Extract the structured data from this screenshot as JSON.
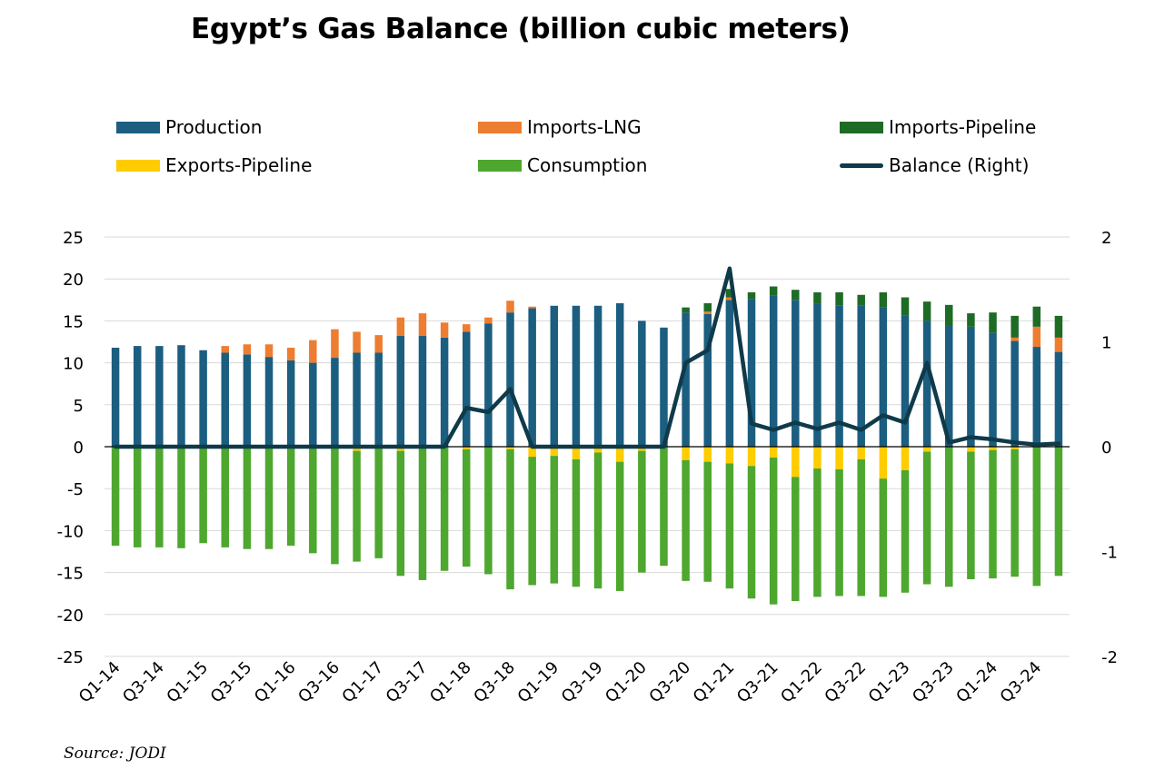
{
  "title": "Egypt’s Gas Balance (billion cubic meters)",
  "source": "Source: JODI",
  "colors": {
    "production": "#1b5e80",
    "imports_lng": "#ed7d31",
    "imports_pipeline": "#1e6b25",
    "exports_pipeline": "#ffcc00",
    "consumption": "#4ea72e",
    "balance": "#0f3a4a",
    "grid": "#d9d9d9"
  },
  "legend": [
    {
      "key": "production",
      "label": "Production",
      "kind": "bar"
    },
    {
      "key": "imports_lng",
      "label": "Imports-LNG",
      "kind": "bar"
    },
    {
      "key": "imports_pipeline",
      "label": "Imports-Pipeline",
      "kind": "bar"
    },
    {
      "key": "exports_pipeline",
      "label": "Exports-Pipeline",
      "kind": "bar"
    },
    {
      "key": "consumption",
      "label": "Consumption",
      "kind": "bar"
    },
    {
      "key": "balance",
      "label": "Balance (Right)",
      "kind": "line"
    }
  ],
  "chart_data": {
    "type": "bar",
    "stacked": true,
    "legend_position": "top",
    "grid": true,
    "ylim": [
      -25,
      25
    ],
    "y_ticks": [
      25,
      20,
      15,
      10,
      5,
      0,
      -5,
      -10,
      -15,
      -20,
      -25
    ],
    "y2lim": [
      -2,
      2
    ],
    "y2_ticks": [
      2,
      1,
      0,
      -1,
      -2
    ],
    "categories": [
      "Q1-14",
      "Q2-14",
      "Q3-14",
      "Q4-14",
      "Q1-15",
      "Q2-15",
      "Q3-15",
      "Q4-15",
      "Q1-16",
      "Q2-16",
      "Q3-16",
      "Q4-16",
      "Q1-17",
      "Q2-17",
      "Q3-17",
      "Q4-17",
      "Q1-18",
      "Q2-18",
      "Q3-18",
      "Q4-18",
      "Q1-19",
      "Q2-19",
      "Q3-19",
      "Q4-19",
      "Q1-20",
      "Q2-20",
      "Q3-20",
      "Q4-20",
      "Q1-21",
      "Q2-21",
      "Q3-21",
      "Q4-21",
      "Q1-22",
      "Q2-22",
      "Q3-22",
      "Q4-22",
      "Q1-23",
      "Q2-23",
      "Q3-23",
      "Q4-23",
      "Q1-24",
      "Q2-24",
      "Q3-24",
      "Q4-24"
    ],
    "x_tick_labels": [
      "Q1-14",
      "Q3-14",
      "Q1-15",
      "Q3-15",
      "Q1-16",
      "Q3-16",
      "Q1-17",
      "Q3-17",
      "Q1-18",
      "Q3-18",
      "Q1-19",
      "Q3-19",
      "Q1-20",
      "Q3-20",
      "Q1-21",
      "Q3-21",
      "Q1-22",
      "Q3-22",
      "Q1-23",
      "Q3-23",
      "Q1-24",
      "Q3-24"
    ],
    "series": [
      {
        "name": "Production",
        "key": "production",
        "axis": "left",
        "values": [
          11.8,
          12.0,
          12.0,
          12.1,
          11.5,
          11.2,
          11.0,
          10.7,
          10.3,
          10.0,
          10.6,
          11.2,
          11.2,
          13.2,
          13.2,
          13.0,
          13.7,
          14.7,
          16.0,
          16.5,
          16.8,
          16.8,
          16.8,
          17.1,
          15.0,
          14.2,
          16.0,
          15.8,
          17.5,
          17.6,
          18.0,
          17.5,
          17.0,
          16.8,
          16.8,
          16.6,
          15.6,
          15.0,
          14.5,
          14.3,
          13.6,
          12.6,
          11.9,
          11.3
        ]
      },
      {
        "name": "Imports-LNG",
        "key": "imports_lng",
        "axis": "left",
        "values": [
          0,
          0,
          0,
          0,
          0,
          0.8,
          1.2,
          1.5,
          1.5,
          2.7,
          3.4,
          2.5,
          2.1,
          2.2,
          2.7,
          1.8,
          0.9,
          0.7,
          1.4,
          0.2,
          0,
          0,
          0,
          0,
          0,
          0,
          0,
          0.3,
          0.3,
          0,
          0,
          0,
          0,
          0,
          0,
          0,
          0,
          0,
          0,
          0,
          0,
          0.4,
          2.4,
          1.7
        ]
      },
      {
        "name": "Imports-Pipeline",
        "key": "imports_pipeline",
        "axis": "left",
        "values": [
          0,
          0,
          0,
          0,
          0,
          0,
          0,
          0,
          0,
          0,
          0,
          0,
          0,
          0,
          0,
          0,
          0,
          0,
          0,
          0,
          0,
          0,
          0,
          0,
          0,
          0,
          0.6,
          1.0,
          1.0,
          0.8,
          1.1,
          1.2,
          1.4,
          1.6,
          1.3,
          1.8,
          2.2,
          2.3,
          2.4,
          1.6,
          2.4,
          2.6,
          2.4,
          2.6
        ]
      },
      {
        "name": "Exports-Pipeline",
        "key": "exports_pipeline",
        "axis": "left",
        "values": [
          0,
          0,
          0,
          0,
          0,
          0,
          0,
          0,
          0,
          0,
          0,
          -0.5,
          0,
          -0.5,
          0,
          0,
          -0.3,
          0,
          -0.3,
          -1.2,
          -1.1,
          -1.5,
          -0.7,
          -1.8,
          -0.5,
          0,
          -1.6,
          -1.8,
          -2.0,
          -2.3,
          -1.3,
          -3.6,
          -2.6,
          -2.7,
          -1.5,
          -3.8,
          -2.8,
          -0.6,
          0,
          -0.6,
          -0.4,
          -0.3,
          0,
          0
        ]
      },
      {
        "name": "Consumption",
        "key": "consumption",
        "axis": "left",
        "values": [
          -11.8,
          -12.0,
          -12.0,
          -12.1,
          -11.5,
          -12.0,
          -12.2,
          -12.2,
          -11.8,
          -12.7,
          -14.0,
          -13.2,
          -13.3,
          -14.9,
          -15.9,
          -14.8,
          -14.0,
          -15.2,
          -16.7,
          -15.3,
          -15.2,
          -15.2,
          -16.2,
          -15.4,
          -14.5,
          -14.2,
          -14.4,
          -14.3,
          -14.9,
          -15.8,
          -17.5,
          -14.8,
          -15.3,
          -15.1,
          -16.3,
          -14.1,
          -14.6,
          -15.8,
          -16.7,
          -15.2,
          -15.3,
          -15.2,
          -16.6,
          -15.4
        ]
      },
      {
        "name": "Balance (Right)",
        "key": "balance",
        "axis": "right",
        "kind": "line",
        "values": [
          0,
          0,
          0,
          0,
          0,
          0,
          0,
          0,
          0,
          0,
          0,
          0,
          0,
          0,
          0,
          0,
          0.37,
          0.33,
          0.55,
          0,
          0,
          0,
          0,
          0,
          0,
          0,
          0.8,
          0.92,
          1.7,
          0.22,
          0.16,
          0.23,
          0.17,
          0.23,
          0.16,
          0.3,
          0.23,
          0.8,
          0.04,
          0.09,
          0.07,
          0.04,
          0.02,
          0.03
        ]
      }
    ]
  }
}
